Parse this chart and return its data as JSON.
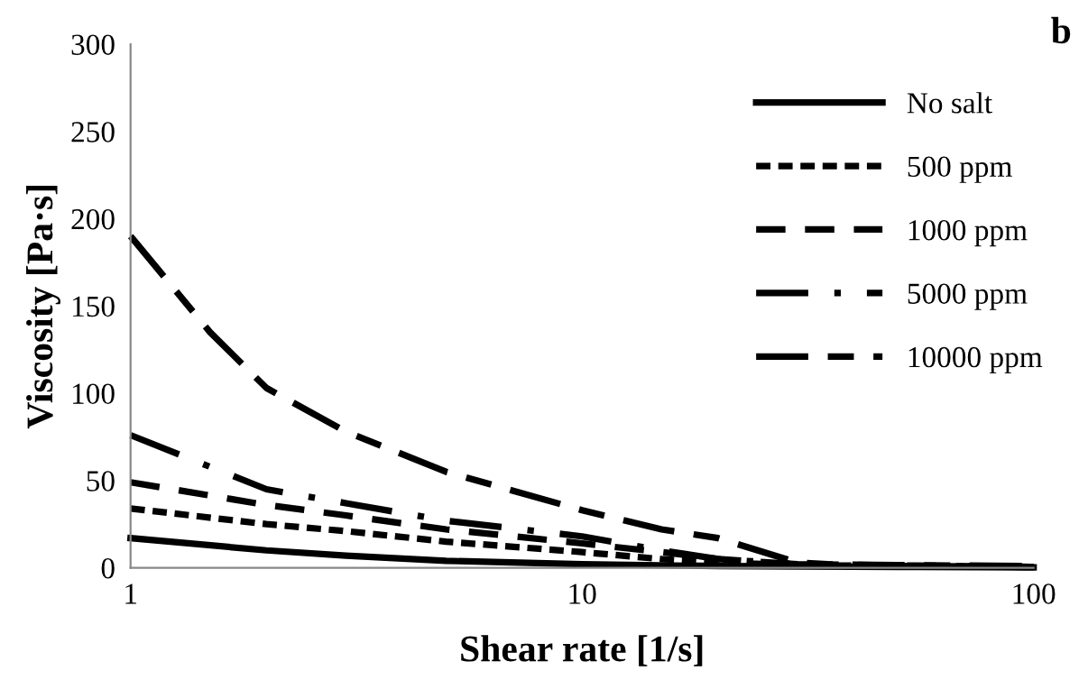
{
  "chart_data": {
    "type": "line",
    "xlabel": "Shear rate [1/s]",
    "ylabel": "Viscosity [Pa·s]",
    "annotations": [
      "b"
    ],
    "log": "x",
    "xlim": [
      1,
      100
    ],
    "xticks": [
      1,
      10,
      100
    ],
    "ylim": [
      0,
      300
    ],
    "yticks": [
      0,
      50,
      100,
      150,
      200,
      250,
      300
    ],
    "grid": false,
    "legend": "right",
    "marker": "none",
    "series": [
      {
        "name": "No salt",
        "color": "#000000",
        "line_style": "solid",
        "x": [
          1,
          2,
          3,
          5,
          10,
          20,
          50,
          100
        ],
        "values": [
          17,
          10,
          7,
          4,
          2,
          1,
          0.5,
          0.3
        ]
      },
      {
        "name": "500 ppm",
        "color": "#000000",
        "line_style": "dotted",
        "x": [
          1,
          2,
          3,
          5,
          10,
          15,
          20,
          30,
          100
        ],
        "values": [
          34,
          25,
          21,
          15,
          9,
          5,
          3,
          1.5,
          0.5
        ]
      },
      {
        "name": "1000 ppm",
        "color": "#000000",
        "line_style": "dashed",
        "x": [
          1,
          2,
          3,
          5,
          10,
          15,
          20,
          30,
          100
        ],
        "values": [
          49,
          36,
          30,
          22,
          14,
          9,
          5,
          2,
          0.5
        ]
      },
      {
        "name": "5000 ppm",
        "color": "#000000",
        "line_style": "dashdot",
        "x": [
          1,
          2,
          3,
          5,
          10,
          15,
          20,
          30,
          50,
          100
        ],
        "values": [
          76,
          45,
          37,
          27,
          18,
          10,
          5,
          2,
          1,
          0.5
        ]
      },
      {
        "name": "10000 ppm",
        "color": "#000000",
        "line_style": "longdash",
        "x": [
          1,
          1.5,
          2,
          3,
          5,
          10,
          15,
          20,
          30,
          35,
          50,
          100
        ],
        "values": [
          190,
          135,
          103,
          78,
          55,
          33,
          22,
          17,
          3,
          2,
          1.5,
          1
        ]
      }
    ]
  }
}
